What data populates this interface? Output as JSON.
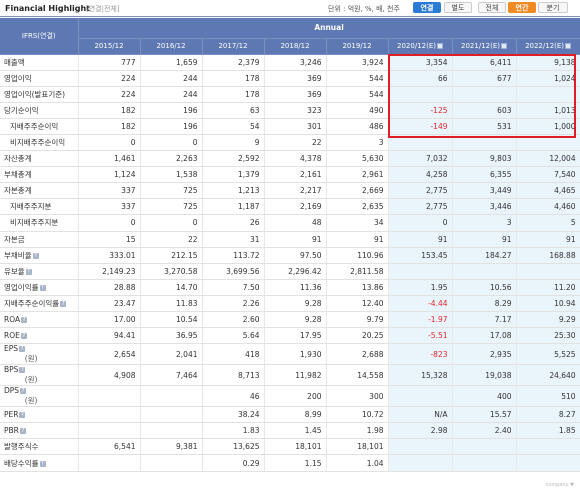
{
  "header": {
    "title": "Financial Highlight",
    "subtitle": "[연결|전체]",
    "unit_text": "단위 : 억원, %, 배, 천주",
    "buttons": [
      "연결",
      "별도",
      "전체",
      "연간",
      "분기"
    ]
  },
  "table": {
    "corner_label": "IFRS(연결)",
    "group_label": "Annual",
    "columns": [
      "2015/12",
      "2016/12",
      "2017/12",
      "2018/12",
      "2019/12",
      "2020/12(E)",
      "2021/12(E)",
      "2022/12(E)"
    ],
    "rows": [
      {
        "label": "매출액",
        "sub": false,
        "icon": false,
        "unit": "",
        "values": [
          "777",
          "1,659",
          "2,379",
          "3,246",
          "3,924",
          "3,354",
          "6,411",
          "9,138"
        ]
      },
      {
        "label": "영업이익",
        "sub": false,
        "icon": false,
        "unit": "",
        "values": [
          "224",
          "244",
          "178",
          "369",
          "544",
          "66",
          "677",
          "1,024"
        ]
      },
      {
        "label": "영업이익(발표기준)",
        "sub": false,
        "icon": false,
        "unit": "",
        "values": [
          "224",
          "244",
          "178",
          "369",
          "544",
          "",
          "",
          ""
        ]
      },
      {
        "label": "당기순이익",
        "sub": false,
        "icon": false,
        "unit": "",
        "values": [
          "182",
          "196",
          "63",
          "323",
          "490",
          "-125",
          "603",
          "1,013"
        ]
      },
      {
        "label": "지배주주순이익",
        "sub": true,
        "icon": false,
        "unit": "",
        "values": [
          "182",
          "196",
          "54",
          "301",
          "486",
          "-149",
          "531",
          "1,000"
        ]
      },
      {
        "label": "비지배주주순이익",
        "sub": true,
        "icon": false,
        "unit": "",
        "values": [
          "0",
          "0",
          "9",
          "22",
          "3",
          "",
          "",
          ""
        ]
      },
      {
        "label": "자산총계",
        "sub": false,
        "icon": false,
        "unit": "",
        "values": [
          "1,461",
          "2,263",
          "2,592",
          "4,378",
          "5,630",
          "7,032",
          "9,803",
          "12,004"
        ]
      },
      {
        "label": "부채총계",
        "sub": false,
        "icon": false,
        "unit": "",
        "values": [
          "1,124",
          "1,538",
          "1,379",
          "2,161",
          "2,961",
          "4,258",
          "6,355",
          "7,540"
        ]
      },
      {
        "label": "자본총계",
        "sub": false,
        "icon": false,
        "unit": "",
        "values": [
          "337",
          "725",
          "1,213",
          "2,217",
          "2,669",
          "2,775",
          "3,449",
          "4,465"
        ]
      },
      {
        "label": "지배주주지분",
        "sub": true,
        "icon": false,
        "unit": "",
        "values": [
          "337",
          "725",
          "1,187",
          "2,169",
          "2,635",
          "2,775",
          "3,446",
          "4,460"
        ]
      },
      {
        "label": "비지배주주지분",
        "sub": true,
        "icon": false,
        "unit": "",
        "values": [
          "0",
          "0",
          "26",
          "48",
          "34",
          "0",
          "3",
          "5"
        ]
      },
      {
        "label": "자본금",
        "sub": false,
        "icon": false,
        "unit": "",
        "values": [
          "15",
          "22",
          "31",
          "91",
          "91",
          "91",
          "91",
          "91"
        ]
      },
      {
        "label": "부채비율",
        "sub": false,
        "icon": true,
        "unit": "",
        "values": [
          "333.01",
          "212.15",
          "113.72",
          "97.50",
          "110.96",
          "153.45",
          "184.27",
          "168.88"
        ]
      },
      {
        "label": "유보율",
        "sub": false,
        "icon": true,
        "unit": "",
        "values": [
          "2,149.23",
          "3,270.58",
          "3,699.56",
          "2,296.42",
          "2,811.58",
          "",
          "",
          ""
        ]
      },
      {
        "label": "영업이익률",
        "sub": false,
        "icon": true,
        "unit": "",
        "values": [
          "28.88",
          "14.70",
          "7.50",
          "11.36",
          "13.86",
          "1.95",
          "10.56",
          "11.20"
        ]
      },
      {
        "label": "지배주주순이익률",
        "sub": false,
        "icon": true,
        "unit": "",
        "values": [
          "23.47",
          "11.83",
          "2.26",
          "9.28",
          "12.40",
          "-4.44",
          "8.29",
          "10.94"
        ]
      },
      {
        "label": "ROA",
        "sub": false,
        "icon": true,
        "unit": "",
        "values": [
          "17.00",
          "10.54",
          "2.60",
          "9.28",
          "9.79",
          "-1.97",
          "7.17",
          "9.29"
        ]
      },
      {
        "label": "ROE",
        "sub": false,
        "icon": true,
        "unit": "",
        "values": [
          "94.41",
          "36.95",
          "5.64",
          "17.95",
          "20.25",
          "-5.51",
          "17.08",
          "25.30"
        ]
      },
      {
        "label": "EPS",
        "sub": false,
        "icon": true,
        "unit": "(원)",
        "values": [
          "2,654",
          "2,041",
          "418",
          "1,930",
          "2,688",
          "-823",
          "2,935",
          "5,525"
        ]
      },
      {
        "label": "BPS",
        "sub": false,
        "icon": true,
        "unit": "(원)",
        "values": [
          "4,908",
          "7,464",
          "8,713",
          "11,982",
          "14,558",
          "15,328",
          "19,038",
          "24,640"
        ]
      },
      {
        "label": "DPS",
        "sub": false,
        "icon": true,
        "unit": "(원)",
        "values": [
          "",
          "",
          "46",
          "200",
          "300",
          "",
          "400",
          "510"
        ]
      },
      {
        "label": "PER",
        "sub": false,
        "icon": true,
        "unit": "",
        "values": [
          "",
          "",
          "38.24",
          "8.99",
          "10.72",
          "N/A",
          "15.57",
          "8.27"
        ]
      },
      {
        "label": "PBR",
        "sub": false,
        "icon": true,
        "unit": "",
        "values": [
          "",
          "",
          "1.83",
          "1.45",
          "1.98",
          "2.98",
          "2.40",
          "1.85"
        ]
      },
      {
        "label": "발행주식수",
        "sub": false,
        "icon": false,
        "unit": "",
        "values": [
          "6,541",
          "9,381",
          "13,625",
          "18,101",
          "18,101",
          "",
          "",
          ""
        ]
      },
      {
        "label": "배당수익률",
        "sub": false,
        "icon": true,
        "unit": "",
        "values": [
          "",
          "",
          "0.29",
          "1.15",
          "1.04",
          "",
          "",
          ""
        ]
      }
    ]
  },
  "footnote": "company ▼",
  "colors": {
    "header_bg": "#5d78b2",
    "estimate_bg": "#eaf4fb",
    "negative": "#e3262b",
    "highlight_box": "#e01c24",
    "active_blue": "#2b7bd6",
    "active_orange": "#f08a22"
  }
}
